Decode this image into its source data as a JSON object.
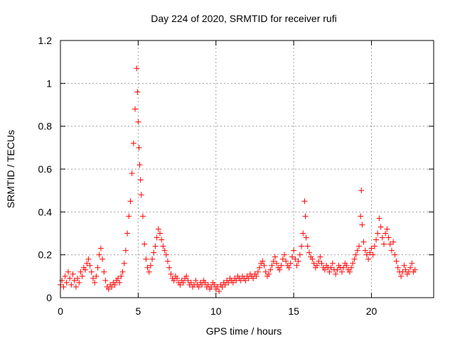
{
  "chart_data": {
    "type": "scatter",
    "title": "Day 224 of 2020, SRMTID for receiver rufi",
    "xlabel": "GPS time / hours",
    "ylabel": "SRMTID / TECUs",
    "xlim": [
      0,
      24
    ],
    "ylim": [
      0,
      1.2
    ],
    "xticks": [
      0,
      5,
      10,
      15,
      20
    ],
    "xtick_labels": [
      "0",
      "5",
      "10",
      "15",
      "20"
    ],
    "yticks": [
      0,
      0.2,
      0.4,
      0.6,
      0.8,
      1.0,
      1.2
    ],
    "ytick_labels": [
      "0",
      "0.2",
      "0.4",
      "0.6",
      "0.8",
      "1",
      "1.2"
    ],
    "grid": true,
    "marker": "plus",
    "marker_color": "#ff0000",
    "series": [
      {
        "name": "SRMTID",
        "points": [
          [
            0.0,
            0.06
          ],
          [
            0.1,
            0.08
          ],
          [
            0.2,
            0.05
          ],
          [
            0.3,
            0.1
          ],
          [
            0.4,
            0.07
          ],
          [
            0.5,
            0.12
          ],
          [
            0.6,
            0.09
          ],
          [
            0.7,
            0.06
          ],
          [
            0.8,
            0.11
          ],
          [
            0.9,
            0.08
          ],
          [
            1.0,
            0.05
          ],
          [
            1.1,
            0.09
          ],
          [
            1.2,
            0.07
          ],
          [
            1.3,
            0.12
          ],
          [
            1.4,
            0.1
          ],
          [
            1.5,
            0.14
          ],
          [
            1.6,
            0.13
          ],
          [
            1.7,
            0.16
          ],
          [
            1.8,
            0.18
          ],
          [
            1.9,
            0.15
          ],
          [
            2.0,
            0.12
          ],
          [
            2.1,
            0.09
          ],
          [
            2.2,
            0.07
          ],
          [
            2.3,
            0.1
          ],
          [
            2.4,
            0.14
          ],
          [
            2.5,
            0.2
          ],
          [
            2.6,
            0.23
          ],
          [
            2.7,
            0.18
          ],
          [
            2.8,
            0.12
          ],
          [
            2.9,
            0.08
          ],
          [
            3.0,
            0.05
          ],
          [
            3.1,
            0.04
          ],
          [
            3.2,
            0.06
          ],
          [
            3.3,
            0.05
          ],
          [
            3.4,
            0.07
          ],
          [
            3.5,
            0.06
          ],
          [
            3.6,
            0.08
          ],
          [
            3.7,
            0.09
          ],
          [
            3.8,
            0.07
          ],
          [
            3.9,
            0.1
          ],
          [
            4.0,
            0.12
          ],
          [
            4.1,
            0.16
          ],
          [
            4.2,
            0.22
          ],
          [
            4.3,
            0.3
          ],
          [
            4.4,
            0.38
          ],
          [
            4.5,
            0.45
          ],
          [
            4.6,
            0.58
          ],
          [
            4.7,
            0.72
          ],
          [
            4.8,
            0.88
          ],
          [
            4.9,
            1.07
          ],
          [
            4.95,
            0.96
          ],
          [
            5.0,
            0.82
          ],
          [
            5.05,
            0.7
          ],
          [
            5.1,
            0.62
          ],
          [
            5.15,
            0.55
          ],
          [
            5.2,
            0.48
          ],
          [
            5.3,
            0.38
          ],
          [
            5.4,
            0.25
          ],
          [
            5.5,
            0.18
          ],
          [
            5.6,
            0.14
          ],
          [
            5.7,
            0.12
          ],
          [
            5.8,
            0.15
          ],
          [
            5.9,
            0.18
          ],
          [
            6.0,
            0.21
          ],
          [
            6.1,
            0.24
          ],
          [
            6.2,
            0.28
          ],
          [
            6.3,
            0.32
          ],
          [
            6.4,
            0.3
          ],
          [
            6.5,
            0.27
          ],
          [
            6.6,
            0.24
          ],
          [
            6.7,
            0.22
          ],
          [
            6.8,
            0.2
          ],
          [
            6.9,
            0.17
          ],
          [
            7.0,
            0.14
          ],
          [
            7.1,
            0.11
          ],
          [
            7.2,
            0.09
          ],
          [
            7.3,
            0.08
          ],
          [
            7.4,
            0.1
          ],
          [
            7.5,
            0.09
          ],
          [
            7.6,
            0.07
          ],
          [
            7.7,
            0.06
          ],
          [
            7.8,
            0.08
          ],
          [
            7.9,
            0.07
          ],
          [
            8.0,
            0.09
          ],
          [
            8.1,
            0.1
          ],
          [
            8.2,
            0.08
          ],
          [
            8.3,
            0.06
          ],
          [
            8.4,
            0.07
          ],
          [
            8.5,
            0.05
          ],
          [
            8.6,
            0.06
          ],
          [
            8.7,
            0.08
          ],
          [
            8.8,
            0.06
          ],
          [
            8.9,
            0.05
          ],
          [
            9.0,
            0.07
          ],
          [
            9.1,
            0.06
          ],
          [
            9.2,
            0.08
          ],
          [
            9.3,
            0.07
          ],
          [
            9.4,
            0.05
          ],
          [
            9.5,
            0.06
          ],
          [
            9.6,
            0.04
          ],
          [
            9.7,
            0.05
          ],
          [
            9.8,
            0.07
          ],
          [
            9.9,
            0.06
          ],
          [
            10.0,
            0.04
          ],
          [
            10.1,
            0.05
          ],
          [
            10.2,
            0.03
          ],
          [
            10.3,
            0.06
          ],
          [
            10.4,
            0.05
          ],
          [
            10.5,
            0.07
          ],
          [
            10.6,
            0.06
          ],
          [
            10.7,
            0.08
          ],
          [
            10.8,
            0.07
          ],
          [
            10.9,
            0.09
          ],
          [
            11.0,
            0.08
          ],
          [
            11.1,
            0.07
          ],
          [
            11.2,
            0.09
          ],
          [
            11.3,
            0.08
          ],
          [
            11.4,
            0.1
          ],
          [
            11.5,
            0.09
          ],
          [
            11.6,
            0.08
          ],
          [
            11.7,
            0.1
          ],
          [
            11.8,
            0.09
          ],
          [
            11.9,
            0.08
          ],
          [
            12.0,
            0.1
          ],
          [
            12.1,
            0.09
          ],
          [
            12.2,
            0.11
          ],
          [
            12.3,
            0.1
          ],
          [
            12.4,
            0.09
          ],
          [
            12.5,
            0.11
          ],
          [
            12.6,
            0.1
          ],
          [
            12.7,
            0.12
          ],
          [
            12.8,
            0.14
          ],
          [
            12.9,
            0.16
          ],
          [
            13.0,
            0.17
          ],
          [
            13.1,
            0.15
          ],
          [
            13.2,
            0.12
          ],
          [
            13.3,
            0.1
          ],
          [
            13.4,
            0.11
          ],
          [
            13.5,
            0.13
          ],
          [
            13.6,
            0.15
          ],
          [
            13.7,
            0.17
          ],
          [
            13.8,
            0.19
          ],
          [
            13.9,
            0.16
          ],
          [
            14.0,
            0.14
          ],
          [
            14.1,
            0.13
          ],
          [
            14.2,
            0.15
          ],
          [
            14.3,
            0.18
          ],
          [
            14.4,
            0.2
          ],
          [
            14.5,
            0.17
          ],
          [
            14.6,
            0.15
          ],
          [
            14.7,
            0.14
          ],
          [
            14.8,
            0.16
          ],
          [
            14.9,
            0.19
          ],
          [
            15.0,
            0.22
          ],
          [
            15.1,
            0.18
          ],
          [
            15.2,
            0.15
          ],
          [
            15.3,
            0.17
          ],
          [
            15.4,
            0.2
          ],
          [
            15.5,
            0.24
          ],
          [
            15.6,
            0.3
          ],
          [
            15.7,
            0.45
          ],
          [
            15.75,
            0.38
          ],
          [
            15.8,
            0.28
          ],
          [
            15.9,
            0.24
          ],
          [
            16.0,
            0.21
          ],
          [
            16.1,
            0.19
          ],
          [
            16.2,
            0.18
          ],
          [
            16.3,
            0.16
          ],
          [
            16.4,
            0.14
          ],
          [
            16.5,
            0.15
          ],
          [
            16.6,
            0.17
          ],
          [
            16.7,
            0.19
          ],
          [
            16.8,
            0.16
          ],
          [
            16.9,
            0.14
          ],
          [
            17.0,
            0.13
          ],
          [
            17.1,
            0.15
          ],
          [
            17.2,
            0.14
          ],
          [
            17.3,
            0.12
          ],
          [
            17.4,
            0.14
          ],
          [
            17.5,
            0.16
          ],
          [
            17.6,
            0.13
          ],
          [
            17.7,
            0.11
          ],
          [
            17.8,
            0.13
          ],
          [
            17.9,
            0.15
          ],
          [
            18.0,
            0.14
          ],
          [
            18.1,
            0.12
          ],
          [
            18.2,
            0.14
          ],
          [
            18.3,
            0.16
          ],
          [
            18.4,
            0.15
          ],
          [
            18.5,
            0.13
          ],
          [
            18.6,
            0.12
          ],
          [
            18.7,
            0.14
          ],
          [
            18.8,
            0.16
          ],
          [
            18.9,
            0.18
          ],
          [
            19.0,
            0.2
          ],
          [
            19.1,
            0.22
          ],
          [
            19.2,
            0.24
          ],
          [
            19.3,
            0.38
          ],
          [
            19.35,
            0.5
          ],
          [
            19.4,
            0.34
          ],
          [
            19.5,
            0.26
          ],
          [
            19.6,
            0.22
          ],
          [
            19.7,
            0.2
          ],
          [
            19.8,
            0.18
          ],
          [
            19.9,
            0.21
          ],
          [
            20.0,
            0.23
          ],
          [
            20.1,
            0.2
          ],
          [
            20.2,
            0.24
          ],
          [
            20.3,
            0.27
          ],
          [
            20.4,
            0.3
          ],
          [
            20.5,
            0.37
          ],
          [
            20.6,
            0.33
          ],
          [
            20.7,
            0.28
          ],
          [
            20.8,
            0.25
          ],
          [
            20.9,
            0.3
          ],
          [
            21.0,
            0.32
          ],
          [
            21.1,
            0.28
          ],
          [
            21.2,
            0.25
          ],
          [
            21.3,
            0.22
          ],
          [
            21.4,
            0.26
          ],
          [
            21.5,
            0.2
          ],
          [
            21.6,
            0.17
          ],
          [
            21.7,
            0.14
          ],
          [
            21.8,
            0.12
          ],
          [
            21.9,
            0.1
          ],
          [
            22.0,
            0.12
          ],
          [
            22.1,
            0.15
          ],
          [
            22.2,
            0.13
          ],
          [
            22.3,
            0.11
          ],
          [
            22.4,
            0.12
          ],
          [
            22.5,
            0.14
          ],
          [
            22.6,
            0.16
          ],
          [
            22.7,
            0.12
          ],
          [
            22.8,
            0.13
          ]
        ]
      }
    ]
  }
}
